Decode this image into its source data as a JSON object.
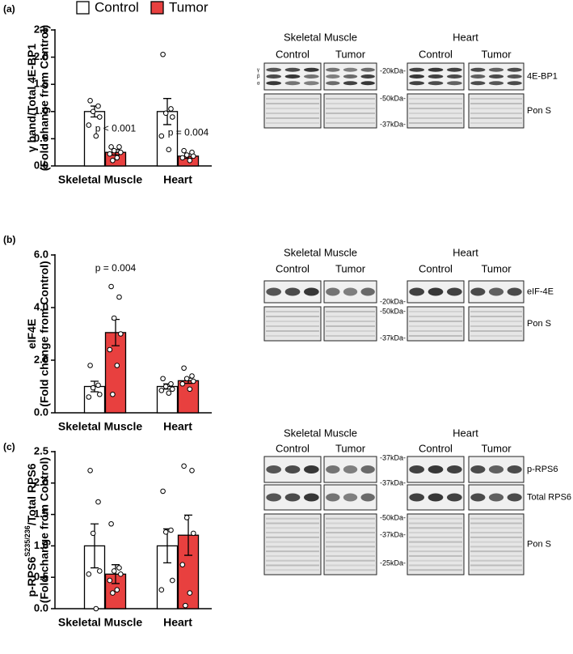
{
  "chart_data": [
    {
      "type": "bar",
      "panel_label": "(a)",
      "ylabel": [
        "γ band/Total 4E-BP1"
      ],
      "ylabel_sub": "(Fold change from Control)",
      "categories": [
        "Skeletal Muscle",
        "Heart"
      ],
      "series": [
        {
          "name": "Control",
          "color": "#ffffff",
          "values": [
            1.0,
            1.0
          ],
          "errors": [
            0.1,
            0.24
          ],
          "points": [
            [
              1.2,
              1.1,
              1.0,
              0.9,
              0.75,
              0.55
            ],
            [
              2.05,
              1.05,
              0.97,
              0.9,
              0.55,
              0.3
            ]
          ]
        },
        {
          "name": "Tumor",
          "color": "#e8403f",
          "values": [
            0.25,
            0.18
          ],
          "errors": [
            0.05,
            0.04
          ],
          "points": [
            [
              0.35,
              0.35,
              0.28,
              0.25,
              0.22,
              0.15,
              0.1
            ],
            [
              0.28,
              0.25,
              0.2,
              0.18,
              0.15,
              0.1
            ]
          ]
        }
      ],
      "annotations": [
        "p < 0.001",
        "p = 0.004"
      ],
      "ylim": [
        0,
        2.5
      ],
      "yticks": [
        {
          "value": 0,
          "label": "0.0"
        },
        0.5,
        {
          "value": 1,
          "label": "1.0"
        },
        1.5,
        {
          "value": 2,
          "label": "2.0"
        },
        2.5
      ]
    },
    {
      "type": "bar",
      "panel_label": "(b)",
      "ylabel": [
        "eIF4E"
      ],
      "ylabel_sub": "(Fold change from Control)",
      "categories": [
        "Skeletal Muscle",
        "Heart"
      ],
      "series": [
        {
          "color": "#ffffff",
          "values": [
            1.0,
            1.0
          ],
          "errors": [
            0.2,
            0.1
          ],
          "points": [
            [
              1.8,
              1.05,
              0.95,
              0.7,
              0.6
            ],
            [
              1.3,
              1.1,
              1.0,
              0.9,
              0.85,
              0.75
            ]
          ]
        },
        {
          "color": "#e8403f",
          "values": [
            3.05,
            1.22
          ],
          "errors": [
            0.5,
            0.1
          ],
          "points": [
            [
              4.8,
              4.4,
              3.6,
              3.0,
              2.4,
              1.8,
              0.7
            ],
            [
              1.7,
              1.4,
              1.3,
              1.2,
              1.1,
              0.9
            ]
          ]
        }
      ],
      "annotations": [
        "p = 0.004",
        null
      ],
      "ylim": [
        0,
        6
      ],
      "yticks": [
        {
          "value": 0,
          "label": "0.0"
        },
        {
          "value": 2,
          "label": "2.0"
        },
        {
          "value": 4,
          "label": "4.0"
        },
        {
          "value": 6,
          "label": "6.0"
        }
      ]
    },
    {
      "type": "bar",
      "panel_label": "(c)",
      "ylabel": [
        "p-RPS6",
        "S235/236",
        "/Total RPS6"
      ],
      "ylabel_sub": "(Fold change from Control)",
      "categories": [
        "Skeletal Muscle",
        "Heart"
      ],
      "series": [
        {
          "color": "#ffffff",
          "values": [
            1.0,
            1.0
          ],
          "errors": [
            0.35,
            0.27
          ],
          "points": [
            [
              2.2,
              1.7,
              1.2,
              0.6,
              0.55,
              0.0
            ],
            [
              1.87,
              1.25,
              1.22,
              0.45,
              0.3
            ]
          ]
        },
        {
          "color": "#e8403f",
          "values": [
            0.55,
            1.17
          ],
          "errors": [
            0.15,
            0.32
          ],
          "points": [
            [
              1.35,
              0.65,
              0.6,
              0.55,
              0.45,
              0.3,
              0.25
            ],
            [
              2.27,
              2.2,
              1.45,
              1.2,
              0.7,
              0.25,
              0.05
            ]
          ]
        }
      ],
      "ylim": [
        0,
        2.5
      ],
      "yticks": [
        {
          "value": 0,
          "label": "0.0"
        },
        0.5,
        {
          "value": 1,
          "label": "1.0"
        },
        1.5,
        {
          "value": 2,
          "label": "2.0"
        },
        2.5
      ]
    }
  ],
  "blots": [
    {
      "tissues": [
        "Skeletal Muscle",
        "Heart"
      ],
      "conditions": [
        "Control",
        "Tumor"
      ],
      "rows": [
        {
          "label": "4E-BP1",
          "markers": [
            "-20kDa-"
          ],
          "bands": [
            "γ",
            "β",
            "α"
          ]
        },
        {
          "label": "Pon S",
          "markers": [
            "-50kDa-",
            "-37kDa-"
          ]
        }
      ]
    },
    {
      "tissues": [
        "Skeletal Muscle",
        "Heart"
      ],
      "conditions": [
        "Control",
        "Tumor"
      ],
      "rows": [
        {
          "label": "eIF-4E",
          "markers": [
            "-20kDa-"
          ]
        },
        {
          "label": "Pon S",
          "markers": [
            "-50kDa-",
            "-37kDa-"
          ]
        }
      ]
    },
    {
      "tissues": [
        "Skeletal Muscle",
        "Heart"
      ],
      "conditions": [
        "Control",
        "Tumor"
      ],
      "rows": [
        {
          "label": "p-RPS6",
          "markers": [
            "-37kDa-"
          ]
        },
        {
          "label": "Total RPS6",
          "markers": [
            "-37kDa-"
          ]
        },
        {
          "label": "Pon S",
          "markers": [
            "-50kDa-",
            "-37kDa-",
            "-25kDa-"
          ]
        }
      ]
    }
  ]
}
